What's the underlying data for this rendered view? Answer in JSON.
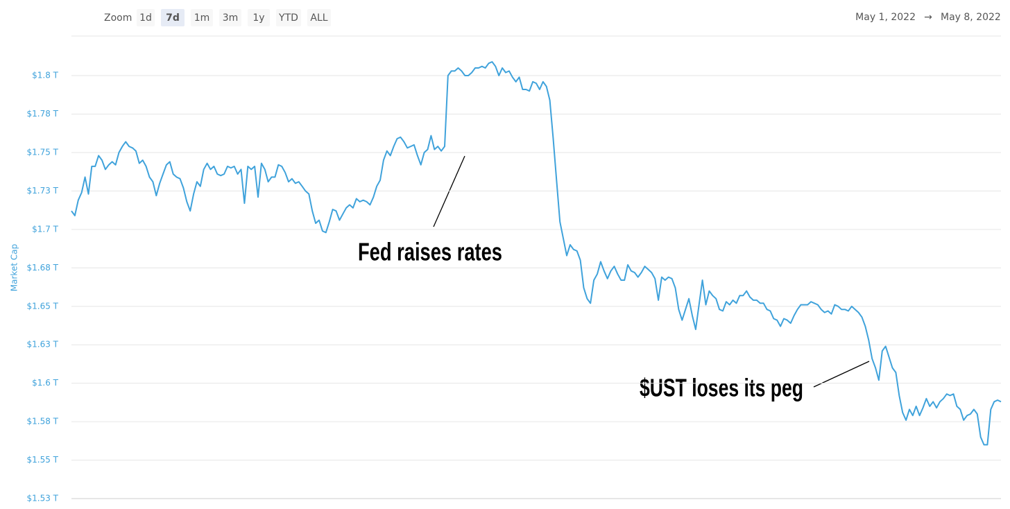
{
  "toolbar": {
    "zoom_label": "Zoom",
    "buttons": [
      "1d",
      "7d",
      "1m",
      "3m",
      "1y",
      "YTD",
      "ALL"
    ],
    "active": "7d",
    "range_from": "May 1, 2022",
    "range_separator": "→",
    "range_to": "May 8, 2022"
  },
  "chart_data": {
    "type": "line",
    "y_label": "Market Cap",
    "color": "#3fa2db",
    "grid": true,
    "ylim": [
      1.525,
      1.825
    ],
    "yticks": [
      {
        "value": 1.525,
        "label": "$1.53 T"
      },
      {
        "value": 1.55,
        "label": "$1.55 T"
      },
      {
        "value": 1.575,
        "label": "$1.58 T"
      },
      {
        "value": 1.6,
        "label": "$1.6 T"
      },
      {
        "value": 1.625,
        "label": "$1.63 T"
      },
      {
        "value": 1.65,
        "label": "$1.65 T"
      },
      {
        "value": 1.675,
        "label": "$1.68 T"
      },
      {
        "value": 1.7,
        "label": "$1.7 T"
      },
      {
        "value": 1.725,
        "label": "$1.73 T"
      },
      {
        "value": 1.75,
        "label": "$1.75 T"
      },
      {
        "value": 1.775,
        "label": "$1.78 T"
      },
      {
        "value": 1.8,
        "label": "$1.8 T"
      }
    ],
    "annotations": [
      "Fed raises rates",
      "$UST loses its peg"
    ],
    "values": [
      1.712,
      1.709,
      1.719,
      1.724,
      1.734,
      1.723,
      1.741,
      1.741,
      1.748,
      1.745,
      1.739,
      1.742,
      1.744,
      1.742,
      1.75,
      1.754,
      1.757,
      1.754,
      1.753,
      1.751,
      1.743,
      1.745,
      1.741,
      1.734,
      1.731,
      1.722,
      1.73,
      1.736,
      1.742,
      1.744,
      1.736,
      1.734,
      1.733,
      1.727,
      1.718,
      1.712,
      1.723,
      1.731,
      1.728,
      1.739,
      1.743,
      1.739,
      1.741,
      1.736,
      1.735,
      1.736,
      1.741,
      1.74,
      1.741,
      1.736,
      1.739,
      1.717,
      1.741,
      1.739,
      1.741,
      1.721,
      1.743,
      1.739,
      1.731,
      1.734,
      1.734,
      1.742,
      1.741,
      1.737,
      1.731,
      1.733,
      1.73,
      1.731,
      1.728,
      1.725,
      1.723,
      1.712,
      1.704,
      1.706,
      1.699,
      1.698,
      1.705,
      1.713,
      1.712,
      1.706,
      1.71,
      1.714,
      1.716,
      1.714,
      1.72,
      1.718,
      1.719,
      1.718,
      1.716,
      1.721,
      1.728,
      1.732,
      1.745,
      1.751,
      1.748,
      1.754,
      1.759,
      1.76,
      1.757,
      1.753,
      1.754,
      1.755,
      1.748,
      1.742,
      1.75,
      1.752,
      1.761,
      1.752,
      1.754,
      1.751,
      1.754,
      1.8,
      1.803,
      1.803,
      1.805,
      1.803,
      1.8,
      1.8,
      1.802,
      1.805,
      1.805,
      1.806,
      1.805,
      1.808,
      1.809,
      1.806,
      1.8,
      1.805,
      1.802,
      1.803,
      1.799,
      1.796,
      1.799,
      1.791,
      1.791,
      1.79,
      1.796,
      1.795,
      1.791,
      1.796,
      1.793,
      1.784,
      1.759,
      1.732,
      1.705,
      1.694,
      1.683,
      1.69,
      1.687,
      1.686,
      1.68,
      1.662,
      1.655,
      1.652,
      1.667,
      1.671,
      1.679,
      1.673,
      1.668,
      1.673,
      1.676,
      1.671,
      1.667,
      1.667,
      1.677,
      1.673,
      1.672,
      1.669,
      1.672,
      1.676,
      1.674,
      1.672,
      1.668,
      1.654,
      1.669,
      1.667,
      1.669,
      1.668,
      1.662,
      1.648,
      1.641,
      1.648,
      1.655,
      1.644,
      1.635,
      1.651,
      1.667,
      1.651,
      1.66,
      1.657,
      1.655,
      1.648,
      1.647,
      1.653,
      1.651,
      1.654,
      1.652,
      1.657,
      1.657,
      1.66,
      1.656,
      1.654,
      1.654,
      1.652,
      1.652,
      1.648,
      1.647,
      1.642,
      1.641,
      1.637,
      1.642,
      1.641,
      1.639,
      1.644,
      1.648,
      1.651,
      1.651,
      1.651,
      1.653,
      1.652,
      1.651,
      1.648,
      1.646,
      1.647,
      1.645,
      1.651,
      1.65,
      1.648,
      1.648,
      1.647,
      1.65,
      1.648,
      1.646,
      1.643,
      1.637,
      1.628,
      1.616,
      1.61,
      1.602,
      1.621,
      1.624,
      1.617,
      1.61,
      1.607,
      1.592,
      1.581,
      1.576,
      1.583,
      1.579,
      1.585,
      1.579,
      1.584,
      1.59,
      1.585,
      1.588,
      1.584,
      1.588,
      1.59,
      1.593,
      1.592,
      1.593,
      1.585,
      1.583,
      1.576,
      1.579,
      1.58,
      1.583,
      1.58,
      1.565,
      1.56,
      1.56,
      1.583,
      1.588,
      1.589,
      1.588
    ]
  }
}
